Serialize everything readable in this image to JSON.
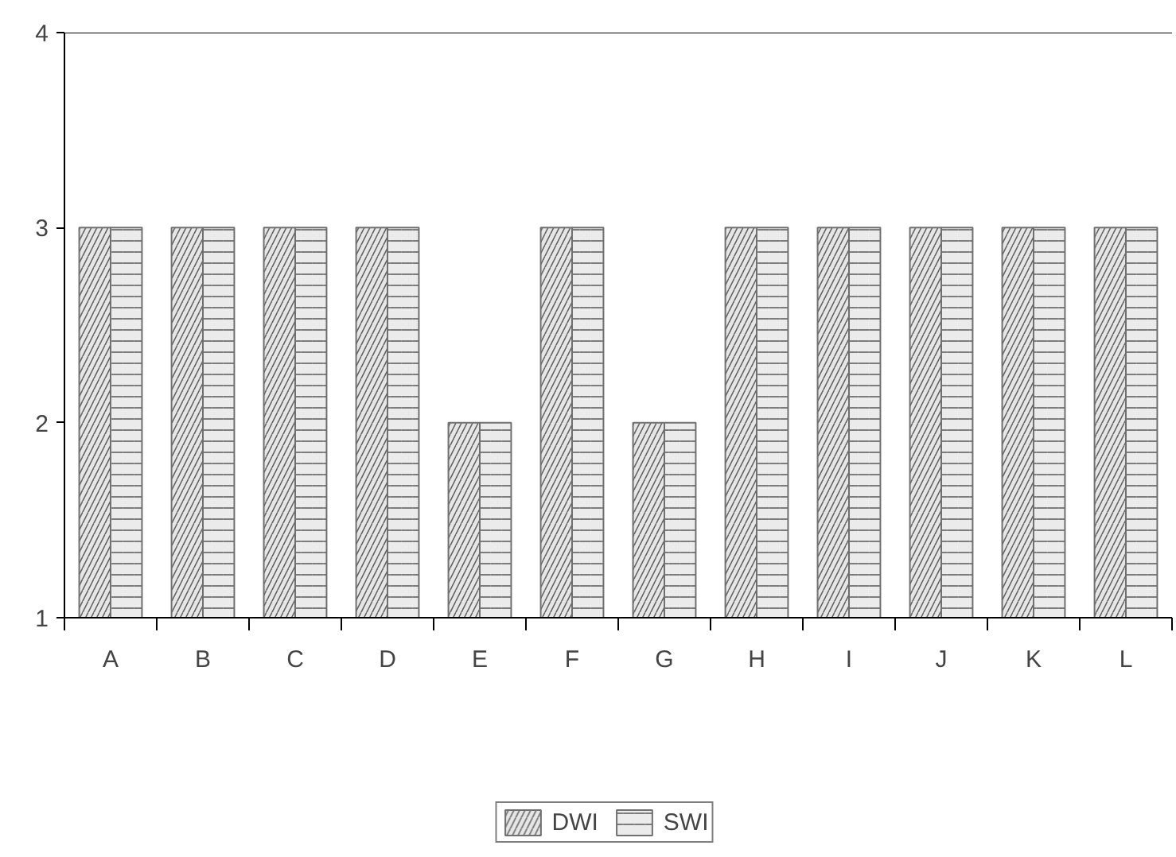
{
  "chart_data": {
    "type": "bar",
    "categories": [
      "A",
      "B",
      "C",
      "D",
      "E",
      "F",
      "G",
      "H",
      "I",
      "J",
      "K",
      "L"
    ],
    "series": [
      {
        "name": "DWI",
        "color": "#e6e6e6",
        "values": [
          3,
          3,
          3,
          3,
          2,
          3,
          2,
          3,
          3,
          3,
          3,
          3
        ]
      },
      {
        "name": "SWI",
        "color": "#ebebeb",
        "values": [
          3,
          3,
          3,
          3,
          2,
          3,
          2,
          3,
          3,
          3,
          3,
          3
        ]
      }
    ],
    "ylim": [
      1,
      4
    ],
    "yticks": [
      1,
      2,
      3,
      4
    ],
    "grid": false,
    "legend": "bottom"
  }
}
